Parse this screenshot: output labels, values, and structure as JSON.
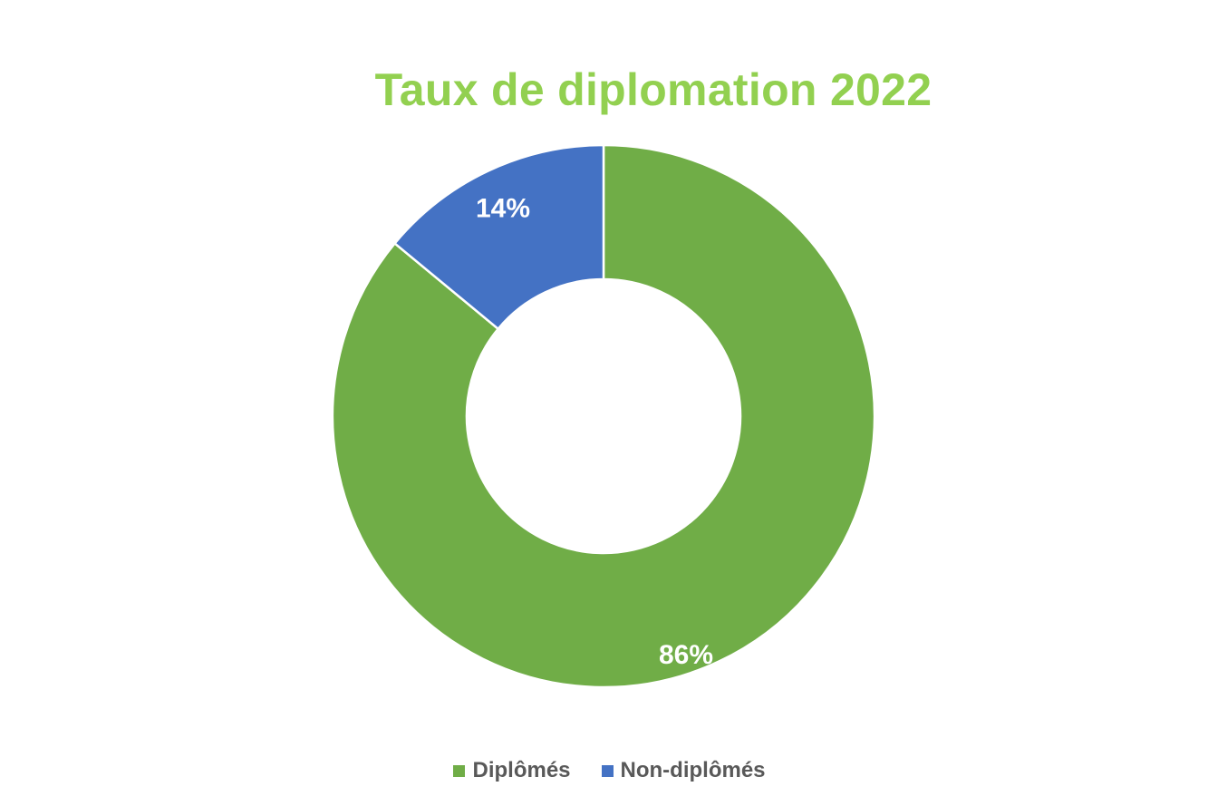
{
  "chart_data": {
    "type": "pie",
    "variant": "donut",
    "title": "Taux de diplomation 2022",
    "slices": [
      {
        "name": "Diplômés",
        "value": 86,
        "label": "86%",
        "color": "#70AD47"
      },
      {
        "name": "Non-diplômés",
        "value": 14,
        "label": "14%",
        "color": "#4472C4"
      }
    ],
    "legend": {
      "position": "bottom",
      "items": [
        "Diplômés",
        "Non-diplômés"
      ]
    }
  },
  "colors": {
    "title": "#92D050",
    "slice_border": "#ffffff",
    "label_text": "#ffffff",
    "legend_text": "#595959"
  }
}
